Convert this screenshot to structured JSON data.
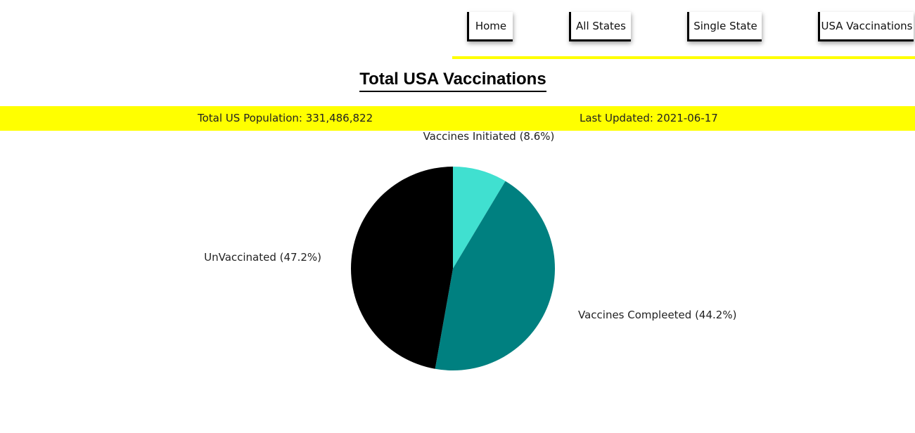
{
  "nav": {
    "items": [
      {
        "label": "Home"
      },
      {
        "label": "All States"
      },
      {
        "label": "Single State"
      },
      {
        "label": "USA Vaccinations"
      }
    ],
    "accent_color": "#ffff00"
  },
  "page": {
    "title": "Total USA Vaccinations"
  },
  "info_bar": {
    "population_text": "Total US Population: 331,486,822",
    "updated_text": "Last Updated: 2021-06-17",
    "background": "#ffff00"
  },
  "chart_data": {
    "type": "pie",
    "slices": [
      {
        "label": "Vaccines Initiated",
        "value": 8.6,
        "display": "Vaccines Initiated (8.6%)",
        "color": "#40e0d0"
      },
      {
        "label": "Vaccines Compleeted",
        "value": 44.2,
        "display": "Vaccines Compleeted (44.2%)",
        "color": "#008080"
      },
      {
        "label": "UnVaccinated",
        "value": 47.2,
        "display": "UnVaccinated (47.2%)",
        "color": "#000000"
      }
    ],
    "legend": false
  }
}
